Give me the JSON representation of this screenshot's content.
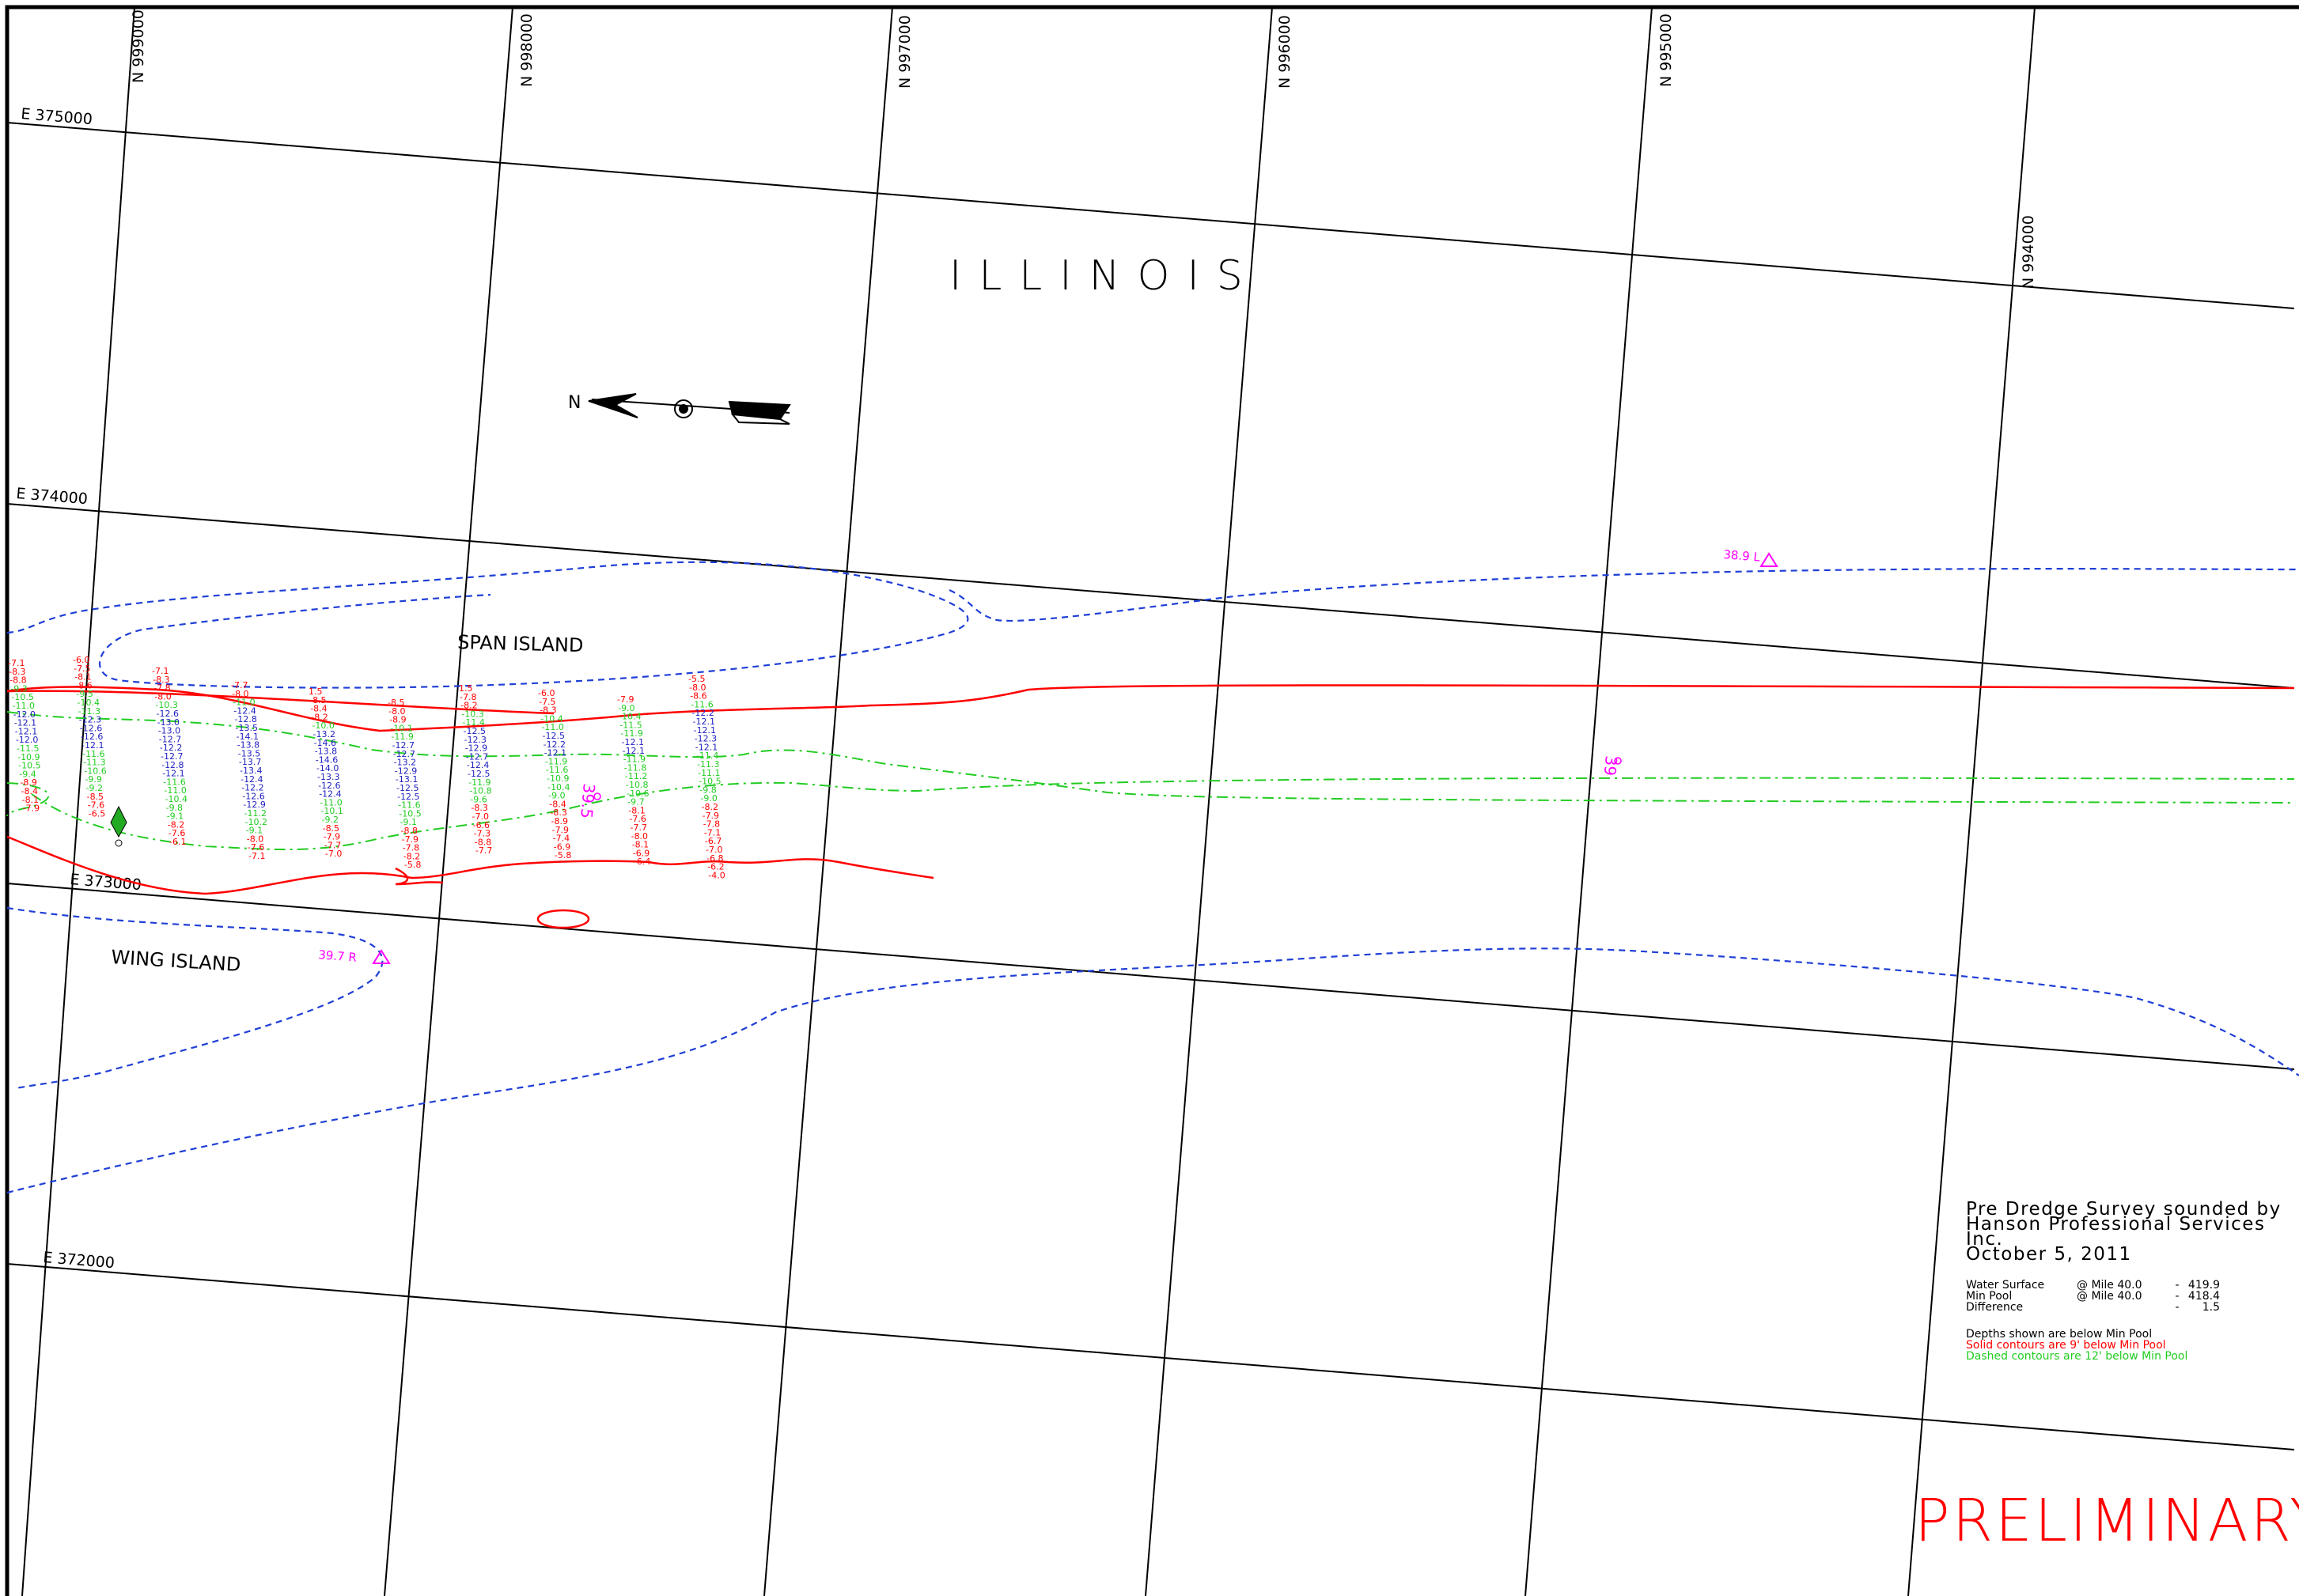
{
  "state_label": "ILLINOIS",
  "islands": {
    "span": "SPAN ISLAND",
    "wing": "WING ISLAND"
  },
  "north_arrow": {
    "letter": "N"
  },
  "grid_labels": {
    "northing": [
      "N 999000",
      "N 998000",
      "N 997000",
      "N 996000",
      "N 995000",
      "N 994000"
    ],
    "easting": [
      "E 375000",
      "E 374000",
      "E 373000",
      "E 372000"
    ]
  },
  "markers": {
    "mile_left": "38.9 L",
    "mile_right": "39.7 R",
    "mile_39": "39",
    "mile_39_5": "39.5"
  },
  "notes": {
    "line1": "Pre Dredge Survey sounded by",
    "line2": "Hanson Professional Services Inc.",
    "line3": "October 5, 2011",
    "rows": [
      {
        "label": "Water Surface",
        "where": "@ Mile 40.0",
        "sep": "-",
        "value": "419.9"
      },
      {
        "label": "Min Pool",
        "where": "@ Mile 40.0",
        "sep": "-",
        "value": "418.4"
      },
      {
        "label": "Difference",
        "where": "",
        "sep": "-",
        "value": "1.5"
      }
    ],
    "legend_black": "Depths shown are below Min Pool",
    "legend_red": "Solid contours are 9' below Min Pool",
    "legend_green": "Dashed contours are 12' below Min Pool"
  },
  "stamp": "PRELIMINARY",
  "colors": {
    "frame": "#000000",
    "shoreline": "#1f3fd6",
    "solid_contour": "#ff0000",
    "dashed_contour": "#22cc22",
    "deep_sounding": "#2020c0",
    "marker": "#ff00ff"
  },
  "soundings": [
    {
      "values": [
        "-7.1",
        "-8.3",
        "-8.8",
        "-9.3",
        "-10.5",
        "-11.0",
        "-12.0",
        "-12.1",
        "-12.1",
        "-12.0",
        "-11.5",
        "-10.9",
        "-10.5",
        "-9.4",
        "-8.9",
        "-8.4",
        "-8.1",
        "-7.9"
      ]
    },
    {
      "values": [
        "-6.0",
        "-7.5",
        "-8.1",
        "-8.6",
        "-9.5",
        "-10.4",
        "-11.3",
        "-12.3",
        "-12.6",
        "-12.6",
        "-12.1",
        "-11.6",
        "-11.3",
        "-10.6",
        "-9.9",
        "-9.2",
        "-8.5",
        "-7.6",
        "-6.5"
      ]
    },
    {
      "values": [
        "-7.1",
        "-8.3",
        "-7.8",
        "-8.0",
        "-10.3",
        "-12.6",
        "-13.0",
        "-13.0",
        "-12.7",
        "-12.2",
        "-12.7",
        "-12.8",
        "-12.1",
        "-11.6",
        "-11.0",
        "-10.4",
        "-9.8",
        "-9.1",
        "-8.2",
        "-7.6",
        "-6.1"
      ]
    },
    {
      "values": [
        "-7.7",
        "-8.0",
        "-11.0",
        "-12.4",
        "-12.8",
        "-13.5",
        "-14.1",
        "-13.8",
        "-13.5",
        "-13.7",
        "-13.4",
        "-12.4",
        "-12.2",
        "-12.6",
        "-12.9",
        "-11.2",
        "-10.2",
        "-9.1",
        "-8.0",
        "-7.6",
        "-7.1"
      ]
    },
    {
      "values": [
        "1.5",
        "-8.5",
        "-8.4",
        "-8.2",
        "-10.0",
        "-13.2",
        "-14.6",
        "-13.8",
        "-14.6",
        "-14.0",
        "-13.3",
        "-12.6",
        "-12.4",
        "-11.0",
        "-10.1",
        "-9.2",
        "-8.5",
        "-7.9",
        "-7.7",
        "-7.0"
      ]
    },
    {
      "values": [
        "-8.5",
        "-8.0",
        "-8.9",
        "-10.1",
        "-11.9",
        "-12.7",
        "-12.7",
        "-13.2",
        "-12.9",
        "-13.1",
        "-12.5",
        "-12.5",
        "-11.6",
        "-10.5",
        "-9.1",
        "-8.8",
        "-7.9",
        "-7.8",
        "-8.2",
        "-5.8"
      ]
    },
    {
      "values": [
        "1.5",
        "-7.8",
        "-8.2",
        "-10.3",
        "-11.4",
        "-12.5",
        "-12.3",
        "-12.9",
        "-12.7",
        "-12.4",
        "-12.5",
        "-11.9",
        "-10.8",
        "-9.6",
        "-8.3",
        "-7.0",
        "-6.6",
        "-7.3",
        "-8.8",
        "-7.7"
      ]
    },
    {
      "values": [
        "-6.0",
        "-7.5",
        "-8.3",
        "-10.4",
        "-11.0",
        "-12.5",
        "-12.2",
        "-12.1",
        "-11.9",
        "-11.6",
        "-10.9",
        "-10.4",
        "-9.0",
        "-8.4",
        "-8.3",
        "-8.9",
        "-7.9",
        "-7.4",
        "-6.9",
        "-5.8"
      ]
    },
    {
      "values": [
        "-7.9",
        "-9.0",
        "-10.4",
        "-11.5",
        "-11.9",
        "-12.1",
        "-12.1",
        "-11.9",
        "-11.8",
        "-11.2",
        "-10.8",
        "-10.6",
        "-9.7",
        "-8.1",
        "-7.6",
        "-7.7",
        "-8.0",
        "-8.1",
        "-6.9",
        "-6.4"
      ]
    },
    {
      "values": [
        "-5.5",
        "-8.0",
        "-8.6",
        "-11.6",
        "-12.2",
        "-12.1",
        "-12.1",
        "-12.3",
        "-12.1",
        "-11.4",
        "-11.3",
        "-11.1",
        "-10.5",
        "-9.8",
        "-9.0",
        "-8.2",
        "-7.9",
        "-7.8",
        "-7.1",
        "-6.7",
        "-7.0",
        "-6.8",
        "-6.2",
        "-4.0"
      ]
    }
  ]
}
